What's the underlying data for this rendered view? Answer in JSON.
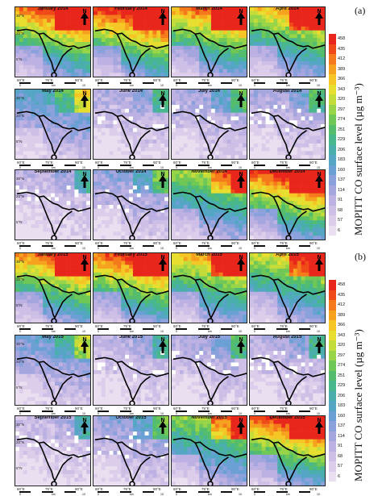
{
  "figure": {
    "colorbar_title": "MOPITT CO surface level (µg m⁻³)",
    "colorbar_ticks": [
      "458",
      "435",
      "412",
      "389",
      "366",
      "343",
      "320",
      "297",
      "274",
      "251",
      "229",
      "206",
      "183",
      "160",
      "137",
      "114",
      "91",
      "68",
      "57",
      "6"
    ],
    "colorbar_colors": [
      "#e8261b",
      "#f04a18",
      "#f57a1b",
      "#f7a21e",
      "#f5c625",
      "#e8de2f",
      "#c4dc3a",
      "#98d448",
      "#6fc756",
      "#54bd6d",
      "#48b78d",
      "#4aafac",
      "#55a6c5",
      "#6ba0d4",
      "#8ba1dc",
      "#a6a6df",
      "#bcb1e2",
      "#cdbfe6",
      "#dccdeb",
      "#eadff1"
    ],
    "north_label": "N",
    "lat_labels": [
      "30°N",
      "20°N",
      "5°N"
    ],
    "lon_labels": [
      "60°E",
      "75°E",
      "90°E"
    ],
    "scale_labels": [
      "0",
      "km",
      "10"
    ]
  },
  "panels": [
    {
      "label": "(a)",
      "maps": [
        {
          "title": "January 2014",
          "level": 0.85
        },
        {
          "title": "February 2014",
          "level": 0.92
        },
        {
          "title": "March 2014",
          "level": 0.8
        },
        {
          "title": "April 2014",
          "level": 0.72
        },
        {
          "title": "May 2014",
          "level": 0.35
        },
        {
          "title": "June 2014",
          "level": 0.18
        },
        {
          "title": "July 2014",
          "level": 0.22
        },
        {
          "title": "August 2014",
          "level": 0.2
        },
        {
          "title": "September 2014",
          "level": 0.15
        },
        {
          "title": "October 2014",
          "level": 0.25
        },
        {
          "title": "November 2014",
          "level": 0.6
        },
        {
          "title": "December 2014",
          "level": 0.9
        }
      ]
    },
    {
      "label": "(b)",
      "maps": [
        {
          "title": "January 2015",
          "level": 0.82
        },
        {
          "title": "February 2015",
          "level": 0.86
        },
        {
          "title": "March 2015",
          "level": 0.74
        },
        {
          "title": "April 2015",
          "level": 0.66
        },
        {
          "title": "May 2015",
          "level": 0.3
        },
        {
          "title": "June 2015",
          "level": 0.16
        },
        {
          "title": "July 2015",
          "level": 0.2
        },
        {
          "title": "August 2015",
          "level": 0.18
        },
        {
          "title": "September 2015",
          "level": 0.14
        },
        {
          "title": "October 2015",
          "level": 0.24
        },
        {
          "title": "November 2015",
          "level": 0.58
        },
        {
          "title": "December 2015",
          "level": 0.88
        }
      ]
    }
  ]
}
